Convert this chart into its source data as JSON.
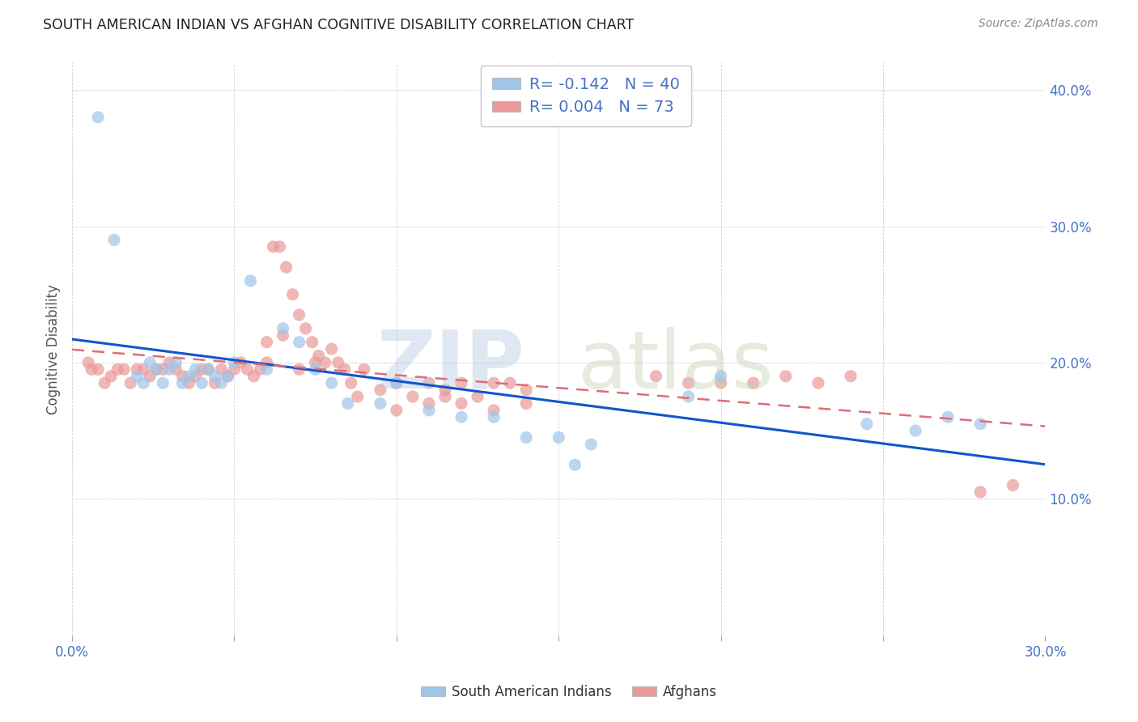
{
  "title": "SOUTH AMERICAN INDIAN VS AFGHAN COGNITIVE DISABILITY CORRELATION CHART",
  "source": "Source: ZipAtlas.com",
  "ylabel": "Cognitive Disability",
  "xlabel": "",
  "xlim": [
    0.0,
    0.3
  ],
  "ylim": [
    0.0,
    0.42
  ],
  "xticks": [
    0.0,
    0.05,
    0.1,
    0.15,
    0.2,
    0.25,
    0.3
  ],
  "xticklabels": [
    "0.0%",
    "",
    "",
    "",
    "",
    "",
    "30.0%"
  ],
  "yticks": [
    0.0,
    0.1,
    0.2,
    0.3,
    0.4
  ],
  "yticklabels": [
    "",
    "10.0%",
    "20.0%",
    "30.0%",
    "40.0%"
  ],
  "blue_color": "#9fc5e8",
  "pink_color": "#ea9999",
  "blue_line_color": "#1155cc",
  "pink_line_color": "#e06c75",
  "legend_r_blue": "R = -0.142",
  "legend_n_blue": "N = 40",
  "legend_r_pink": "R = 0.004",
  "legend_n_pink": "N = 73",
  "south_american_x": [
    0.008,
    0.013,
    0.02,
    0.022,
    0.024,
    0.026,
    0.028,
    0.03,
    0.032,
    0.034,
    0.036,
    0.038,
    0.04,
    0.042,
    0.044,
    0.046,
    0.048,
    0.05,
    0.055,
    0.06,
    0.065,
    0.07,
    0.075,
    0.08,
    0.085,
    0.095,
    0.1,
    0.11,
    0.12,
    0.13,
    0.14,
    0.15,
    0.155,
    0.16,
    0.19,
    0.2,
    0.245,
    0.26,
    0.27,
    0.28
  ],
  "south_american_y": [
    0.38,
    0.29,
    0.19,
    0.185,
    0.2,
    0.195,
    0.185,
    0.195,
    0.2,
    0.185,
    0.19,
    0.195,
    0.185,
    0.195,
    0.19,
    0.185,
    0.19,
    0.2,
    0.26,
    0.195,
    0.225,
    0.215,
    0.195,
    0.185,
    0.17,
    0.17,
    0.185,
    0.165,
    0.16,
    0.16,
    0.145,
    0.145,
    0.125,
    0.14,
    0.175,
    0.19,
    0.155,
    0.15,
    0.16,
    0.155
  ],
  "afghan_x": [
    0.005,
    0.006,
    0.008,
    0.01,
    0.012,
    0.014,
    0.016,
    0.018,
    0.02,
    0.022,
    0.024,
    0.026,
    0.028,
    0.03,
    0.032,
    0.034,
    0.036,
    0.038,
    0.04,
    0.042,
    0.044,
    0.046,
    0.048,
    0.05,
    0.052,
    0.054,
    0.056,
    0.058,
    0.06,
    0.062,
    0.064,
    0.066,
    0.068,
    0.07,
    0.072,
    0.074,
    0.076,
    0.078,
    0.08,
    0.082,
    0.084,
    0.086,
    0.088,
    0.09,
    0.095,
    0.1,
    0.105,
    0.11,
    0.115,
    0.12,
    0.125,
    0.13,
    0.135,
    0.14,
    0.06,
    0.065,
    0.07,
    0.075,
    0.1,
    0.11,
    0.115,
    0.12,
    0.13,
    0.14,
    0.18,
    0.19,
    0.2,
    0.21,
    0.22,
    0.23,
    0.24,
    0.28,
    0.29
  ],
  "afghan_y": [
    0.2,
    0.195,
    0.195,
    0.185,
    0.19,
    0.195,
    0.195,
    0.185,
    0.195,
    0.195,
    0.19,
    0.195,
    0.195,
    0.2,
    0.195,
    0.19,
    0.185,
    0.19,
    0.195,
    0.195,
    0.185,
    0.195,
    0.19,
    0.195,
    0.2,
    0.195,
    0.19,
    0.195,
    0.2,
    0.285,
    0.285,
    0.27,
    0.25,
    0.235,
    0.225,
    0.215,
    0.205,
    0.2,
    0.21,
    0.2,
    0.195,
    0.185,
    0.175,
    0.195,
    0.18,
    0.185,
    0.175,
    0.185,
    0.18,
    0.185,
    0.175,
    0.185,
    0.185,
    0.18,
    0.215,
    0.22,
    0.195,
    0.2,
    0.165,
    0.17,
    0.175,
    0.17,
    0.165,
    0.17,
    0.19,
    0.185,
    0.185,
    0.185,
    0.19,
    0.185,
    0.19,
    0.105,
    0.11
  ]
}
